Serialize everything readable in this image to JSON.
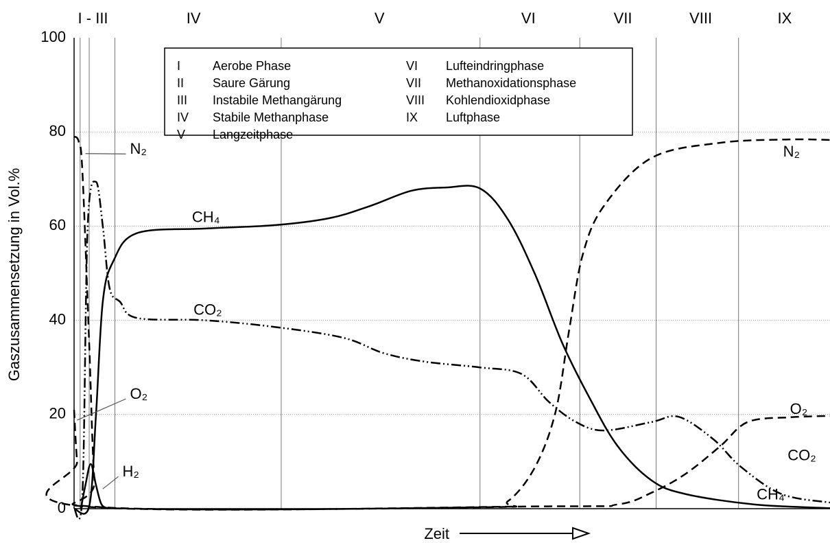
{
  "chart_data": {
    "type": "line",
    "y_label": "Gaszusammensetzung in Vol.%",
    "x_label": "Zeit",
    "xlim": [
      0,
      100
    ],
    "ylim": [
      0,
      100
    ],
    "yticks": [
      0,
      20,
      40,
      60,
      80,
      100
    ],
    "grid": true,
    "phase_boundaries": [
      0.8,
      2,
      5.4,
      27.4,
      53.7,
      66.9,
      77,
      87.9
    ],
    "phase_labels": [
      {
        "label": "I - III",
        "x": 2.5
      },
      {
        "label": "IV",
        "x": 15.8
      },
      {
        "label": "V",
        "x": 40.4
      },
      {
        "label": "VI",
        "x": 60.1
      },
      {
        "label": "VII",
        "x": 72.6
      },
      {
        "label": "VIII",
        "x": 82.9
      },
      {
        "label": "IX",
        "x": 94
      }
    ],
    "legend_items": [
      {
        "code": "I",
        "name": "Aerobe Phase"
      },
      {
        "code": "II",
        "name": "Saure Gärung"
      },
      {
        "code": "III",
        "name": "Instabile Methangärung"
      },
      {
        "code": "IV",
        "name": "Stabile Methanphase"
      },
      {
        "code": "V",
        "name": "Langzeitphase"
      },
      {
        "code": "VI",
        "name": "Lufteindringphase"
      },
      {
        "code": "VII",
        "name": "Methanoxidationsphase"
      },
      {
        "code": "VIII",
        "name": "Kohlendioxidphase"
      },
      {
        "code": "IX",
        "name": "Luftphase"
      }
    ],
    "series": [
      {
        "name": "CH₄",
        "color": "#000000",
        "style": "solid",
        "x": [
          0,
          2.0,
          2.9,
          3.8,
          5.2,
          8.3,
          17.4,
          26.5,
          33.8,
          39.2,
          44.6,
          49.2,
          53.7,
          57.4,
          61,
          64.6,
          68.2,
          71.9,
          76.4,
          80.9,
          90,
          100
        ],
        "values": [
          0,
          0.5,
          20,
          44,
          52.6,
          58.5,
          59.5,
          60.2,
          61.7,
          64.3,
          67.5,
          68.2,
          68,
          61.4,
          49.7,
          35.1,
          23.5,
          13.3,
          6,
          3.1,
          0.9,
          0.1
        ]
      },
      {
        "name": "CO₂",
        "color": "#000000",
        "style": "dash-dot-dot",
        "x": [
          0,
          1.1,
          1.8,
          2.9,
          3.8,
          4.7,
          6.1,
          8.3,
          17.4,
          26.5,
          35.6,
          41,
          46.5,
          53.7,
          59.2,
          62.8,
          66.4,
          70.1,
          76.4,
          80,
          84.6,
          88.2,
          93.6,
          100
        ],
        "values": [
          0,
          3,
          60,
          69.4,
          60,
          46.8,
          43.9,
          40.5,
          40,
          38.6,
          36.3,
          33,
          31.2,
          30,
          28.6,
          22.7,
          18.4,
          16.6,
          18.4,
          19.5,
          14.7,
          8.9,
          3.1,
          1.3
        ]
      },
      {
        "name": "N₂",
        "color": "#000000",
        "style": "dashed",
        "x": [
          0,
          0.6,
          1.1,
          2.0,
          2.7,
          3.8,
          53.7,
          57.4,
          61,
          63.7,
          65.5,
          67.3,
          70.1,
          76.4,
          85.5,
          94.6,
          100
        ],
        "values": [
          79,
          78,
          71.6,
          35,
          6,
          0.3,
          0.3,
          1.6,
          8.9,
          20.6,
          38,
          54,
          64.3,
          74.5,
          77.7,
          78.4,
          78.3
        ]
      },
      {
        "name": "O₂",
        "color": "#000000",
        "style": "dashed",
        "x": [
          0,
          0.4,
          1.1,
          62.8,
          71.9,
          76.4,
          80.9,
          85.5,
          89.1,
          94.6,
          100
        ],
        "values": [
          21,
          10,
          0.5,
          0.5,
          0.9,
          3.4,
          7.4,
          13.3,
          18.4,
          19.4,
          19.7
        ]
      },
      {
        "name": "H₂",
        "color": "#000000",
        "style": "solid",
        "x": [
          0.9,
          1.5,
          2.2,
          2.9,
          3.6,
          4.5
        ],
        "values": [
          0,
          5,
          9.5,
          5,
          1,
          0
        ]
      }
    ],
    "annotations": [
      {
        "text": "N₂",
        "at": [
          7.4,
          76.2
        ],
        "point": [
          1.5,
          75.4
        ]
      },
      {
        "text": "O₂",
        "at": [
          7.4,
          24.2
        ],
        "point": [
          0.4,
          18.8
        ]
      },
      {
        "text": "H₂",
        "at": [
          6.4,
          7.7
        ],
        "point": [
          3.8,
          4.2
        ]
      },
      {
        "text": "CH₄",
        "at": [
          15.6,
          61.7
        ]
      },
      {
        "text": "CO₂",
        "at": [
          15.8,
          42
        ]
      },
      {
        "text": "N₂",
        "at": [
          93.8,
          75.6
        ]
      },
      {
        "text": "O₂",
        "at": [
          94.7,
          21
        ]
      },
      {
        "text": "CO₂",
        "at": [
          94.4,
          11.1
        ]
      },
      {
        "text": "CH₄",
        "at": [
          90.3,
          2.8
        ]
      }
    ]
  }
}
